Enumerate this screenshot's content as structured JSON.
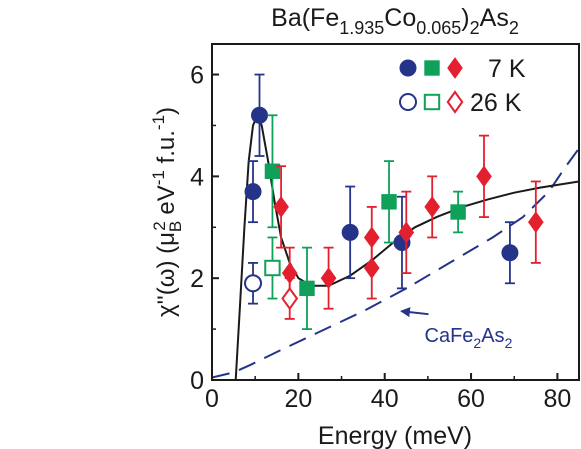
{
  "chart_data": {
    "type": "scatter",
    "title": {
      "prefix": "Ba(Fe",
      "sub1": "1.935",
      "mid": "Co",
      "sub2": "0.065",
      "mid2": ")",
      "sub3": "2",
      "suffix": "As",
      "sub4": "2"
    },
    "xlabel": "Energy (meV)",
    "ylabel": {
      "part1": "χ''(ω) (μ",
      "subB": "B",
      "supB": "2",
      "part2": " eV",
      "sup1": "-1",
      "part3": " f.u.",
      "sup2": "-1",
      "part4": ")"
    },
    "xlim": [
      0,
      85
    ],
    "ylim": [
      0,
      6.6
    ],
    "x_ticks": [
      0,
      20,
      40,
      60,
      80
    ],
    "y_ticks": [
      0,
      2,
      4,
      6
    ],
    "legend": {
      "position": "top-right",
      "entries": [
        {
          "label": "7 K",
          "filled": true
        },
        {
          "label": "26 K",
          "filled": false
        }
      ]
    },
    "colors": {
      "navy": "#253489",
      "green": "#0fa05a",
      "red": "#e5202e",
      "black": "#1a1a1a"
    },
    "series": [
      {
        "temp": "7 K",
        "marker": "circle",
        "color": "navy",
        "filled": true,
        "points": [
          [
            9.5,
            3.7,
            0.6
          ],
          [
            11,
            5.2,
            0.8
          ],
          [
            32,
            2.9,
            0.9
          ],
          [
            44,
            2.7,
            0.9
          ],
          [
            69,
            2.5,
            0.6
          ]
        ]
      },
      {
        "temp": "7 K",
        "marker": "square",
        "color": "green",
        "filled": true,
        "points": [
          [
            14,
            4.1,
            1.1
          ],
          [
            22,
            1.8,
            0.8
          ],
          [
            41,
            3.5,
            0.8
          ],
          [
            57,
            3.3,
            0.4
          ]
        ]
      },
      {
        "temp": "7 K",
        "marker": "diamond",
        "color": "red",
        "filled": true,
        "points": [
          [
            16,
            3.4,
            0.8
          ],
          [
            18,
            2.1,
            0.5
          ],
          [
            27,
            2.0,
            0.6
          ],
          [
            37,
            2.8,
            0.6
          ],
          [
            37,
            2.2,
            0.6
          ],
          [
            45,
            2.9,
            0.8
          ],
          [
            51,
            3.4,
            0.6
          ],
          [
            63,
            4.0,
            0.8
          ],
          [
            75,
            3.1,
            0.8
          ]
        ]
      },
      {
        "temp": "26 K",
        "marker": "circle",
        "color": "navy",
        "filled": false,
        "points": [
          [
            9.5,
            1.9,
            0.4
          ]
        ]
      },
      {
        "temp": "26 K",
        "marker": "square",
        "color": "green",
        "filled": false,
        "points": [
          [
            14,
            2.2,
            0.6
          ]
        ]
      },
      {
        "temp": "26 K",
        "marker": "diamond",
        "color": "red",
        "filled": false,
        "points": [
          [
            18,
            1.6,
            0.4
          ]
        ]
      }
    ],
    "fit_curve": [
      [
        0,
        0
      ],
      [
        5.5,
        0
      ],
      [
        6.5,
        1.5
      ],
      [
        7.5,
        3.0
      ],
      [
        8.5,
        4.3
      ],
      [
        9.5,
        5.0
      ],
      [
        10.5,
        5.2
      ],
      [
        11.5,
        5.0
      ],
      [
        13,
        4.3
      ],
      [
        14.5,
        3.5
      ],
      [
        16,
        2.8
      ],
      [
        18,
        2.3
      ],
      [
        20,
        2.0
      ],
      [
        23,
        1.85
      ],
      [
        27,
        1.85
      ],
      [
        32,
        2.05
      ],
      [
        37,
        2.35
      ],
      [
        42,
        2.7
      ],
      [
        47,
        3.0
      ],
      [
        52,
        3.2
      ],
      [
        58,
        3.4
      ],
      [
        64,
        3.55
      ],
      [
        70,
        3.68
      ],
      [
        76,
        3.78
      ],
      [
        85,
        3.9
      ]
    ],
    "reference_curve": {
      "label_main": "CaFe",
      "label_sub1": "2",
      "label_mid": "As",
      "label_sub2": "2",
      "points": [
        [
          0,
          0.05
        ],
        [
          5,
          0.15
        ],
        [
          9,
          0.3
        ],
        [
          15,
          0.55
        ],
        [
          25,
          0.95
        ],
        [
          35,
          1.35
        ],
        [
          45,
          1.8
        ],
        [
          55,
          2.3
        ],
        [
          65,
          2.8
        ],
        [
          72,
          3.2
        ],
        [
          78,
          3.7
        ],
        [
          82,
          4.2
        ],
        [
          85,
          4.55
        ]
      ],
      "label_at": [
        52,
        0.9
      ],
      "arrow_to": [
        44,
        1.35
      ]
    }
  }
}
